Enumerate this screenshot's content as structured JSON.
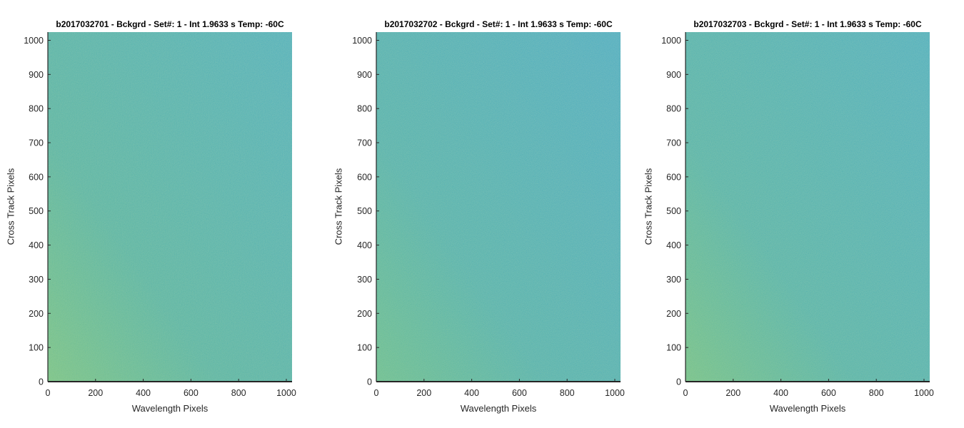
{
  "chart_data": [
    {
      "type": "heatmap",
      "title": "b2017032701 - Bckgrd - Set#: 1 - Int 1.9633 s Temp: -60C",
      "xlabel": "Wavelength Pixels",
      "ylabel": "Cross Track Pixels",
      "xlim": [
        0,
        1024
      ],
      "ylim": [
        0,
        1024
      ],
      "xticks": [
        "0",
        "200",
        "400",
        "600",
        "800",
        "1000"
      ],
      "yticks": [
        "0",
        "100",
        "200",
        "300",
        "400",
        "500",
        "600",
        "700",
        "800",
        "900",
        "1000"
      ],
      "colormap": "parula",
      "pattern": "noise, yellow-green toward left edge, teal toward right",
      "colors": {
        "warm": "#68b979",
        "mid": "#3aa99a",
        "cool": "#28a4b3"
      }
    },
    {
      "type": "heatmap",
      "title": "b2017032702 - Bckgrd - Set#: 1 - Int 1.9633 s Temp: -60C",
      "xlabel": "Wavelength Pixels",
      "ylabel": "Cross Track Pixels",
      "xlim": [
        0,
        1024
      ],
      "ylim": [
        0,
        1024
      ],
      "xticks": [
        "0",
        "200",
        "400",
        "600",
        "800",
        "1000"
      ],
      "yticks": [
        "0",
        "100",
        "200",
        "300",
        "400",
        "500",
        "600",
        "700",
        "800",
        "900",
        "1000"
      ],
      "colormap": "parula",
      "pattern": "noise, green at far left, mostly teal-blue",
      "colors": {
        "warm": "#55b485",
        "mid": "#30a6a4",
        "cool": "#1fa0ba"
      }
    },
    {
      "type": "heatmap",
      "title": "b2017032703 - Bckgrd - Set#: 1 - Int 1.9633 s Temp: -60C",
      "xlabel": "Wavelength Pixels",
      "ylabel": "Cross Track Pixels",
      "xlim": [
        0,
        1024
      ],
      "ylim": [
        0,
        1024
      ],
      "xticks": [
        "0",
        "200",
        "400",
        "600",
        "800",
        "1000"
      ],
      "yticks": [
        "0",
        "100",
        "200",
        "300",
        "400",
        "500",
        "600",
        "700",
        "800",
        "900",
        "1000"
      ],
      "colormap": "parula",
      "pattern": "noise, yellow-green toward left edge, teal toward right",
      "colors": {
        "warm": "#62b77c",
        "mid": "#35a8a0",
        "cool": "#24a3b6"
      }
    }
  ]
}
